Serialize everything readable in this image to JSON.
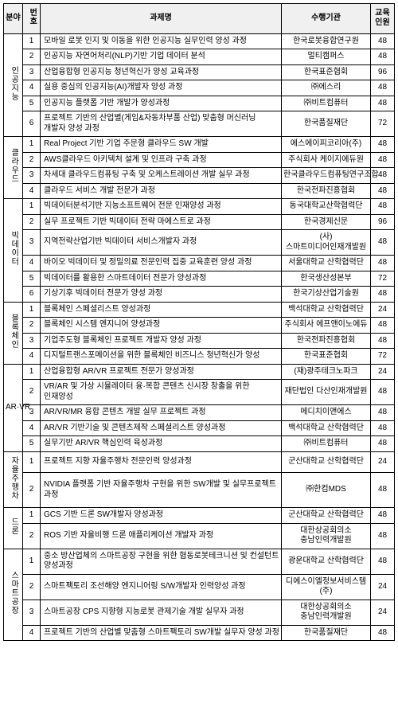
{
  "headers": {
    "category": "분야",
    "num": "번호",
    "course": "과제명",
    "org": "수행기관",
    "count": "교육\n인원"
  },
  "groups": [
    {
      "category": "인공지능",
      "rows": [
        {
          "num": "1",
          "course": "모바일 로봇 인지 및 이동을 위한 인공지능 실무인력 양성 과정",
          "org": "한국로봇융합연구원",
          "count": "48"
        },
        {
          "num": "2",
          "course": "인공지능 자연어처리(NLP)기반 기업 데이터 분석",
          "org": "멀티캠퍼스",
          "count": "48"
        },
        {
          "num": "3",
          "course": "산업융합형 인공지능 청년혁신가 양성 교육과정",
          "org": "한국표준협회",
          "count": "96"
        },
        {
          "num": "4",
          "course": "실용 중심의 인공지능(AI)개발자 양성 과정",
          "org": "㈜에스리",
          "count": "48"
        },
        {
          "num": "5",
          "course": "인공지능 플랫폼 기반 개발가 양성과정",
          "org": "㈜비트컴퓨터",
          "count": "48"
        },
        {
          "num": "6",
          "course": "프로젝트 기반의 산업별(게임&자동차부품 산업) 맞춤형 머신러닝 개발자 양성 과정",
          "org": "한국품질재단",
          "count": "72"
        }
      ]
    },
    {
      "category": "클라우드",
      "rows": [
        {
          "num": "1",
          "course": "Real Project 기반 기업 주문형 클라우드 SW 개발",
          "org": "에스에이피코리아(주)",
          "count": "48"
        },
        {
          "num": "2",
          "course": "AWS클라우드 아키텍처 설계 및 인프라 구축 과정",
          "org": "주식회사 케이지에듀원",
          "count": "48"
        },
        {
          "num": "3",
          "course": "차세대 클라우드컴퓨팅 구축 및 오케스트레이션 개발 실무 과정",
          "org": "한국클라우드컴퓨팅연구조합",
          "count": "48"
        },
        {
          "num": "4",
          "course": "클라우드 서비스 개발 전문가 과정",
          "org": "한국전파진흥협회",
          "count": "48"
        }
      ]
    },
    {
      "category": "빅데이터",
      "rows": [
        {
          "num": "1",
          "course": "빅데이터분석기반 지능소프트웨어 전문 인재양성 과정",
          "org": "동국대학교산학협력단",
          "count": "48"
        },
        {
          "num": "2",
          "course": "실무 프로젝트 기반 빅데이터 전략 마에스트로 과정",
          "org": "한국경제신문",
          "count": "96"
        },
        {
          "num": "3",
          "course": "지역전략산업기반 빅데이터 서비스개발자 과정",
          "org": "(사)스마트미디어인재개발원",
          "count": "48"
        },
        {
          "num": "4",
          "course": "바이오 빅데이터 및 정밀의료 전문인력 집중 교육훈련 양성 과정",
          "org": "서울대학교 산학협력단",
          "count": "48"
        },
        {
          "num": "5",
          "course": "빅데이터를 활용한 스마트데이터 전문가 양성과정",
          "org": "한국생산성본부",
          "count": "72"
        },
        {
          "num": "6",
          "course": "기상기후 빅데이터 전문가 양성 과정",
          "org": "한국기상산업기술원",
          "count": "48"
        }
      ]
    },
    {
      "category": "블록체인",
      "rows": [
        {
          "num": "1",
          "course": "블록체인 스페셜리스트 양성과정",
          "org": "백석대학교 산학협력단",
          "count": "24"
        },
        {
          "num": "2",
          "course": "블록체인 시스템 엔지니어 양성과정",
          "org": "주식회사 에프앤이노에듀",
          "count": "48"
        },
        {
          "num": "3",
          "course": "기업주도형 블록체인 프로젝트 개발자 양성 과정",
          "org": "한국전파진흥협회",
          "count": "48"
        },
        {
          "num": "4",
          "course": "디지털트랜스포메이션을 위한 블록체인 비즈니스 청년혁신가 양성",
          "org": "한국표준협회",
          "count": "72"
        }
      ]
    },
    {
      "category": "AR·VR",
      "vertical": false,
      "rows": [
        {
          "num": "1",
          "course": "산업융합형 AR/VR 프로젝트 전문가 양성과정",
          "org": "(재)광주테크노파크",
          "count": "24"
        },
        {
          "num": "2",
          "course": "VR/AR 및 가상 시뮬레이터 융·복합 콘텐츠 신시장 창출을 위한 인재양성",
          "org": "재단법인 다산인재개발원",
          "count": "48"
        },
        {
          "num": "3",
          "course": "AR/VR/MR 융합 콘텐츠 개발 실무 프로젝트 과정",
          "org": "메디치이앤에스",
          "count": "48"
        },
        {
          "num": "4",
          "course": "AR/VR 기반기술 및 콘텐츠제작 스페셜리스트 양성과정",
          "org": "백석대학교 산학협력단",
          "count": "48"
        },
        {
          "num": "5",
          "course": "실무기반 AR/VR 핵심인력 육성과정",
          "org": "㈜비트컴퓨터",
          "count": "48"
        }
      ]
    },
    {
      "category": "자율주행차",
      "rows": [
        {
          "num": "1",
          "course": "프로젝트 지향 자율주행차 전문인력 양성과정",
          "org": "군산대학교 산학협력단",
          "count": "24"
        },
        {
          "num": "2",
          "course": "NVIDIA 플랫폼 기반 자율주행차 구현을 위한 SW개발 및 실무프로젝트 과정",
          "org": "㈜한컴MDS",
          "count": "48"
        }
      ]
    },
    {
      "category": "드론",
      "rows": [
        {
          "num": "1",
          "course": "GCS 기반 드론 SW개발자 양성과정",
          "org": "군산대학교 산학협력단",
          "count": "48"
        },
        {
          "num": "2",
          "course": "ROS 기반 자율비행 드론 애플리케이션 개발자 과정",
          "org": "대한상공회의소 충남인력개발원",
          "count": "48"
        }
      ]
    },
    {
      "category": "스마트공장",
      "rows": [
        {
          "num": "1",
          "course": "중소 방산업체의 스마트공장 구현을 위한 협동로봇테크니션 및 컨설턴트 양성과정",
          "org": "광운대학교 산학협력단",
          "count": "48"
        },
        {
          "num": "2",
          "course": "스마트팩토리 조선해양 엔지니어링 S/W개발자 인력양성 과정",
          "org": "디에스이엘정보서비스템(주)",
          "count": "24"
        },
        {
          "num": "3",
          "course": "스마트공장 CPS 지향형 지능로봇 관제기술 개발 실무자 과정",
          "org": "대한상공회의소 충남인력개발원",
          "count": "24"
        },
        {
          "num": "4",
          "course": "프로젝트 기반의 산업별 맞춤형 스마트팩토리 SW개발 실무자 양성 과정",
          "org": "한국품질재단",
          "count": "48"
        }
      ]
    }
  ]
}
